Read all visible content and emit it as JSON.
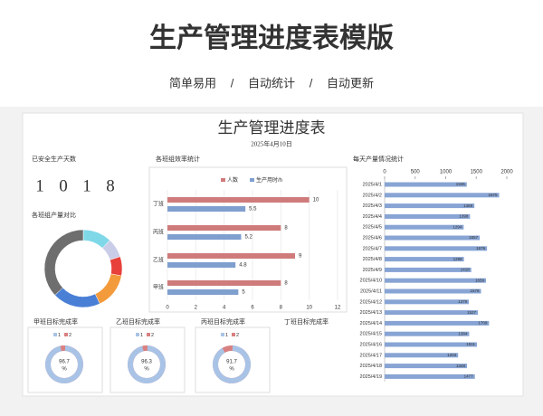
{
  "header": {
    "title": "生产管理进度表模版",
    "features": [
      "简单易用",
      "自动统计",
      "自动更新"
    ],
    "separator": "/"
  },
  "sheet": {
    "title": "生产管理进度表",
    "date": "2025年4月10日",
    "safe_days": {
      "title": "已安全生产天数",
      "digits": [
        "1",
        "0",
        "1",
        "8"
      ]
    },
    "team_output": {
      "type": "donut",
      "title": "各班组产量对比",
      "values": [
        12,
        8,
        8,
        15,
        20,
        37
      ],
      "colors": [
        "#7fd8e8",
        "#c9cde8",
        "#e8403a",
        "#f39a3a",
        "#4a7fd6",
        "#6e6e6e"
      ]
    },
    "efficiency": {
      "type": "bar",
      "title": "各班组效率统计",
      "categories": [
        "丁班",
        "丙班",
        "乙班",
        "甲班"
      ],
      "series": [
        {
          "name": "人数",
          "color": "#cf7b7b",
          "values": [
            10,
            8,
            9,
            8
          ]
        },
        {
          "name": "生产用时/h",
          "color": "#7f9fcf",
          "values": [
            5.5,
            5.2,
            4.8,
            5
          ]
        }
      ],
      "xlim": [
        0,
        12
      ],
      "xticks": [
        0,
        2,
        4,
        6,
        8,
        10,
        12
      ]
    },
    "daily": {
      "type": "bar",
      "title": "每天产量情况统计",
      "color": "#87a4d4",
      "categories": [
        "2025/4/1",
        "2025/4/2",
        "2025/4/3",
        "2025/4/4",
        "2025/4/5",
        "2025/4/6",
        "2025/4/7",
        "2025/4/8",
        "2025/4/9",
        "2025/4/10",
        "2025/4/11",
        "2025/4/12",
        "2025/4/13",
        "2025/4/14",
        "2025/4/15",
        "2025/4/16",
        "2025/4/17",
        "2025/4/18",
        "2025/4/19"
      ],
      "values": [
        1345,
        1875,
        1469,
        1398,
        1294,
        1557,
        1676,
        1298,
        1418,
        1659,
        1578,
        1379,
        1527,
        1709,
        1384,
        1511,
        1203,
        1348,
        1477
      ],
      "xlim": [
        0,
        2000
      ],
      "xticks": [
        0,
        500,
        1000,
        1500,
        2000
      ]
    },
    "rates": {
      "legend": [
        "1",
        "2"
      ],
      "unit": "%",
      "colors": [
        "#a9c3e6",
        "#d98080"
      ],
      "items": [
        {
          "title": "甲班目标完成率",
          "value": 96.7
        },
        {
          "title": "乙班目标完成率",
          "value": 96.3
        },
        {
          "title": "丙班目标完成率",
          "value": 91.7
        },
        {
          "title": "丁班目标完成率"
        }
      ]
    }
  }
}
